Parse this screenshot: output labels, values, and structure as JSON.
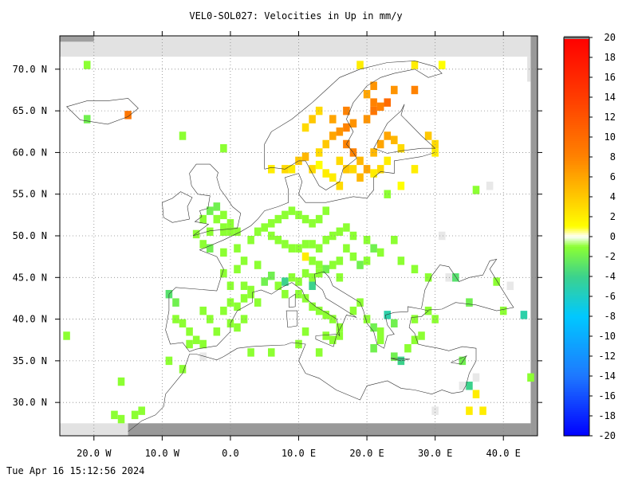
{
  "title": "VEL0-SOL027: Velocities in Up in mm/y",
  "footer": "Tue Apr 16 15:12:56 2024",
  "chart_data": {
    "type": "heatmap",
    "title": "VEL0-SOL027: Velocities in Up in mm/y",
    "xlabel": "",
    "ylabel": "",
    "xlim": [
      -25,
      45
    ],
    "ylim": [
      26,
      74
    ],
    "x_ticks": [
      {
        "value": -20,
        "label": "20.0 W"
      },
      {
        "value": -10,
        "label": "10.0 W"
      },
      {
        "value": 0,
        "label": "0.0"
      },
      {
        "value": 10,
        "label": "10.0 E"
      },
      {
        "value": 20,
        "label": "20.0 E"
      },
      {
        "value": 30,
        "label": "30.0 E"
      },
      {
        "value": 40,
        "label": "40.0 E"
      }
    ],
    "y_ticks": [
      {
        "value": 70,
        "label": "70.0 N"
      },
      {
        "value": 65,
        "label": "65.0 N"
      },
      {
        "value": 60,
        "label": "60.0 N"
      },
      {
        "value": 55,
        "label": "55.0 N"
      },
      {
        "value": 50,
        "label": "50.0 N"
      },
      {
        "value": 45,
        "label": "45.0 N"
      },
      {
        "value": 40,
        "label": "40.0 N"
      },
      {
        "value": 35,
        "label": "35.0 N"
      },
      {
        "value": 30,
        "label": "30.0 N"
      }
    ],
    "grid": true,
    "colorbar": {
      "min": -20,
      "max": 20,
      "step": 2,
      "labels": [
        "20",
        "18",
        "16",
        "14",
        "12",
        "10",
        "8",
        "6",
        "4",
        "2",
        "0",
        "-2",
        "-4",
        "-6",
        "-8",
        "-10",
        "-12",
        "-14",
        "-16",
        "-18",
        "-20"
      ]
    },
    "cells": [
      [
        -1,
        50.5,
        -1
      ],
      [
        0,
        50.5,
        -1
      ],
      [
        1,
        50.5,
        -1
      ],
      [
        -1,
        51,
        -1
      ],
      [
        0,
        51.5,
        -1
      ],
      [
        -2,
        52,
        -1
      ],
      [
        -1,
        52.5,
        -1
      ],
      [
        -3,
        53,
        -2
      ],
      [
        -2,
        53.5,
        -2
      ],
      [
        -4,
        52,
        -1
      ],
      [
        -3,
        50.5,
        -1
      ],
      [
        -5,
        50.2,
        -1
      ],
      [
        -4,
        49,
        -1
      ],
      [
        -3,
        48.5,
        -2
      ],
      [
        -1,
        48,
        -1
      ],
      [
        1,
        48.5,
        -1
      ],
      [
        2,
        47,
        -1
      ],
      [
        1,
        46,
        -1
      ],
      [
        -1,
        45.5,
        -1
      ],
      [
        0,
        44,
        -1
      ],
      [
        2,
        44,
        -1
      ],
      [
        3,
        43.5,
        -1
      ],
      [
        5,
        44.5,
        -2
      ],
      [
        6,
        45.2,
        -2
      ],
      [
        4,
        46.5,
        -1
      ],
      [
        3,
        49.5,
        -1
      ],
      [
        4,
        50.5,
        -1
      ],
      [
        5,
        51,
        -1
      ],
      [
        6,
        51.5,
        -1
      ],
      [
        7,
        52,
        -1
      ],
      [
        8,
        52.5,
        -1
      ],
      [
        9,
        53,
        -1
      ],
      [
        10,
        52.5,
        -1
      ],
      [
        11,
        52,
        -1
      ],
      [
        12,
        51.5,
        -1
      ],
      [
        13,
        52,
        -1
      ],
      [
        14,
        53,
        -1
      ],
      [
        6,
        50,
        -1
      ],
      [
        7,
        49.5,
        -1
      ],
      [
        8,
        49,
        -1
      ],
      [
        9,
        48.5,
        -1
      ],
      [
        10,
        48.5,
        -1
      ],
      [
        11,
        49,
        -1
      ],
      [
        12,
        49,
        -1
      ],
      [
        13,
        48.5,
        -1
      ],
      [
        14,
        49.5,
        -1
      ],
      [
        15,
        50,
        -1
      ],
      [
        16,
        50.5,
        -1
      ],
      [
        17,
        51,
        -1
      ],
      [
        18,
        50,
        -1
      ],
      [
        12,
        47,
        -1
      ],
      [
        13,
        46.5,
        -1
      ],
      [
        14,
        46,
        -2
      ],
      [
        15,
        46.5,
        -1
      ],
      [
        11,
        45.5,
        -1
      ],
      [
        12,
        45,
        -1
      ],
      [
        13,
        45.5,
        -1
      ],
      [
        10,
        44.5,
        -1
      ],
      [
        12,
        44,
        -4
      ],
      [
        16,
        45,
        -1
      ],
      [
        19,
        46.5,
        -2
      ],
      [
        20,
        47,
        -1
      ],
      [
        21,
        48.5,
        -2
      ],
      [
        22,
        48,
        -1
      ],
      [
        20,
        49.5,
        -1
      ],
      [
        17,
        48.5,
        -1
      ],
      [
        18,
        47.5,
        -1
      ],
      [
        16,
        47,
        -1
      ],
      [
        24,
        49.5,
        -1
      ],
      [
        25,
        47,
        -1
      ],
      [
        -9,
        43,
        -3
      ],
      [
        -8,
        42,
        -2
      ],
      [
        -8,
        40,
        -1
      ],
      [
        -7,
        39.5,
        -1
      ],
      [
        -6,
        38.5,
        -1
      ],
      [
        -4,
        41,
        -1
      ],
      [
        -3,
        40,
        -1
      ],
      [
        -5,
        37.5,
        -1
      ],
      [
        -4,
        37,
        -1
      ],
      [
        -6,
        37,
        -1
      ],
      [
        -2,
        38.5,
        -1
      ],
      [
        0,
        39.5,
        -1
      ],
      [
        -1,
        41,
        -1
      ],
      [
        0,
        42,
        -1
      ],
      [
        1,
        41.5,
        -1
      ],
      [
        2,
        42.5,
        -1
      ],
      [
        2,
        40,
        -1
      ],
      [
        1,
        39,
        -1
      ],
      [
        3,
        43,
        -1
      ],
      [
        4,
        42,
        -1
      ],
      [
        7,
        44,
        -1
      ],
      [
        8,
        44.5,
        -4
      ],
      [
        9,
        45,
        -1
      ],
      [
        8,
        43,
        -1
      ],
      [
        10,
        43,
        -1
      ],
      [
        11,
        42.5,
        -1
      ],
      [
        12,
        41.5,
        -1
      ],
      [
        13,
        41,
        -1
      ],
      [
        14,
        40.5,
        -1
      ],
      [
        15,
        40,
        -1
      ],
      [
        16,
        39,
        -1
      ],
      [
        14,
        38,
        -1
      ],
      [
        15,
        37.5,
        -1
      ],
      [
        16,
        38,
        -1
      ],
      [
        11,
        38.5,
        -1
      ],
      [
        18,
        41,
        -1
      ],
      [
        19,
        42,
        -1
      ],
      [
        20,
        40,
        -1
      ],
      [
        21,
        39,
        -2
      ],
      [
        22,
        38.5,
        -1
      ],
      [
        23,
        40.5,
        -5
      ],
      [
        24,
        39.5,
        -2
      ],
      [
        22,
        37.5,
        -1
      ],
      [
        21,
        36.5,
        -2
      ],
      [
        24,
        35.5,
        -2
      ],
      [
        25,
        35,
        -4
      ],
      [
        26,
        36.5,
        -1
      ],
      [
        27,
        37.5,
        -1
      ],
      [
        28,
        38,
        -1
      ],
      [
        27,
        40,
        -1
      ],
      [
        29,
        41,
        -1
      ],
      [
        30,
        40,
        -1
      ],
      [
        27,
        46,
        -1
      ],
      [
        29,
        45,
        -1
      ],
      [
        33,
        45,
        -3
      ],
      [
        35,
        42,
        -2
      ],
      [
        39,
        44.5,
        -1
      ],
      [
        40,
        41,
        -1
      ],
      [
        43,
        40.5,
        -5
      ],
      [
        34,
        35,
        -2
      ],
      [
        13,
        36,
        -1
      ],
      [
        6,
        36,
        -1
      ],
      [
        10,
        37,
        -1
      ],
      [
        3,
        36,
        -1
      ],
      [
        -9,
        35,
        -1
      ],
      [
        -7,
        34,
        -1
      ],
      [
        -16,
        32.5,
        -1
      ],
      [
        -17,
        28.5,
        -1
      ],
      [
        -16,
        28,
        -1
      ],
      [
        -14,
        28.5,
        -1
      ],
      [
        -13,
        29,
        -1
      ],
      [
        -24,
        38,
        -1
      ],
      [
        -21,
        64,
        -2
      ],
      [
        -7,
        62,
        -1
      ],
      [
        -1,
        60.5,
        -1
      ],
      [
        -21,
        70.5,
        -1
      ],
      [
        23,
        55,
        -1
      ],
      [
        36,
        55.5,
        -1
      ],
      [
        44,
        33,
        -1
      ],
      [
        35,
        32,
        -4
      ],
      [
        16,
        59,
        3
      ],
      [
        17,
        58,
        4
      ],
      [
        18,
        58,
        3
      ],
      [
        15,
        57,
        2
      ],
      [
        16,
        56,
        3
      ],
      [
        14,
        57.5,
        2
      ],
      [
        12,
        58,
        3
      ],
      [
        11,
        59.5,
        5
      ],
      [
        10,
        59,
        4
      ],
      [
        9,
        58,
        2
      ],
      [
        13,
        58.5,
        1
      ],
      [
        13,
        60,
        3
      ],
      [
        14,
        61,
        4
      ],
      [
        15,
        62,
        6
      ],
      [
        16,
        62.5,
        7
      ],
      [
        17,
        61,
        8
      ],
      [
        18,
        60,
        8
      ],
      [
        19,
        59,
        5
      ],
      [
        20,
        58,
        6
      ],
      [
        19,
        57,
        5
      ],
      [
        21,
        60,
        5
      ],
      [
        22,
        61,
        6
      ],
      [
        23,
        62,
        6
      ],
      [
        24,
        61.5,
        5
      ],
      [
        25,
        60.5,
        3
      ],
      [
        23,
        59,
        2
      ],
      [
        22,
        58,
        3
      ],
      [
        21,
        57.5,
        2
      ],
      [
        17,
        63,
        8
      ],
      [
        18,
        63.5,
        7
      ],
      [
        20,
        64,
        7
      ],
      [
        21,
        65,
        9
      ],
      [
        21,
        66,
        8
      ],
      [
        22,
        65.5,
        8
      ],
      [
        20,
        67,
        6
      ],
      [
        21,
        68,
        7
      ],
      [
        23,
        66,
        10
      ],
      [
        24,
        67.5,
        7
      ],
      [
        27,
        67.5,
        8
      ],
      [
        29,
        62,
        4
      ],
      [
        30,
        61,
        3
      ],
      [
        30,
        60,
        2
      ],
      [
        12,
        64,
        4
      ],
      [
        13,
        65,
        3
      ],
      [
        11,
        63,
        3
      ],
      [
        17,
        65,
        8
      ],
      [
        15,
        64,
        6
      ],
      [
        -15,
        64.5,
        9
      ],
      [
        19,
        70.5,
        2
      ],
      [
        27,
        70.5,
        2
      ],
      [
        31,
        70.5,
        1
      ],
      [
        27,
        58,
        2
      ],
      [
        25,
        56,
        1
      ],
      [
        8,
        58,
        3
      ],
      [
        6,
        58,
        2
      ],
      [
        11,
        47.5,
        2
      ],
      [
        36,
        31,
        2
      ],
      [
        35,
        29,
        2
      ],
      [
        37,
        29,
        2
      ]
    ],
    "missing_cells": [
      [
        31,
        50
      ],
      [
        32,
        45
      ],
      [
        41,
        44
      ],
      [
        34,
        32
      ],
      [
        36,
        33
      ],
      [
        -4,
        35.5
      ],
      [
        30,
        29
      ],
      [
        38,
        56
      ]
    ]
  }
}
